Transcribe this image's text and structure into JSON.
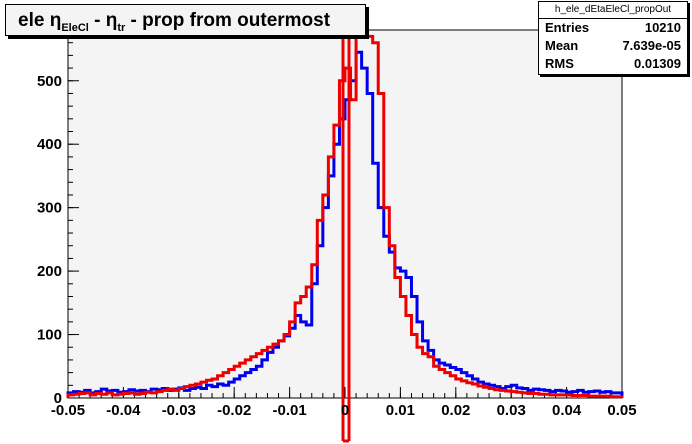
{
  "title": {
    "prefix": "ele η",
    "sub1": "EleCl",
    "middle": " - η",
    "sub2": "tr",
    "suffix": " - prop from outermost"
  },
  "stats": {
    "name": "h_ele_dEtaEleCl_propOut",
    "rows": [
      {
        "label": "Entries",
        "value": "10210"
      },
      {
        "label": "Mean",
        "value": "7.639e-05"
      },
      {
        "label": "RMS",
        "value": "0.01309"
      }
    ]
  },
  "colors": {
    "blue": "#0000ee",
    "red": "#ee0000",
    "plot_bg": "#f4f4f4"
  },
  "chart_data": {
    "type": "line",
    "style": "step-histogram",
    "xlim": [
      -0.05,
      0.05
    ],
    "ylim": [
      0,
      580
    ],
    "x_ticks": [
      -0.05,
      -0.04,
      -0.03,
      -0.02,
      -0.01,
      0,
      0.01,
      0.02,
      0.03,
      0.04,
      0.05
    ],
    "x_tick_labels": [
      "-0.05",
      "-0.04",
      "-0.03",
      "-0.02",
      "-0.01",
      "0",
      "0.01",
      "0.02",
      "0.03",
      "0.04",
      "0.05"
    ],
    "y_ticks": [
      0,
      100,
      200,
      300,
      400,
      500
    ],
    "y_tick_labels": [
      "0",
      "100",
      "200",
      "300",
      "400",
      "500"
    ],
    "bin_edges_start": -0.05,
    "bin_width": 0.001,
    "series": [
      {
        "color": "blue",
        "values": [
          8,
          10,
          9,
          12,
          8,
          10,
          14,
          11,
          12,
          9,
          10,
          13,
          11,
          12,
          10,
          14,
          13,
          15,
          12,
          14,
          16,
          12,
          15,
          17,
          15,
          20,
          18,
          22,
          20,
          25,
          30,
          35,
          40,
          45,
          50,
          60,
          72,
          80,
          90,
          98,
          110,
          130,
          120,
          115,
          180,
          240,
          300,
          350,
          400,
          440,
          470,
          500,
          545,
          520,
          480,
          370,
          300,
          255,
          230,
          205,
          200,
          190,
          160,
          120,
          90,
          75,
          60,
          55,
          52,
          48,
          45,
          40,
          35,
          30,
          25,
          22,
          20,
          18,
          15,
          18,
          20,
          16,
          15,
          12,
          14,
          13,
          12,
          10,
          12,
          11,
          9,
          10,
          12,
          9,
          10,
          11,
          9,
          10,
          8,
          8
        ]
      },
      {
        "color": "red",
        "values": [
          5,
          6,
          7,
          8,
          5,
          7,
          6,
          8,
          5,
          6,
          7,
          8,
          6,
          7,
          9,
          8,
          10,
          12,
          14,
          12,
          15,
          18,
          20,
          22,
          25,
          28,
          30,
          35,
          40,
          45,
          50,
          55,
          60,
          65,
          70,
          75,
          80,
          85,
          90,
          100,
          120,
          150,
          160,
          175,
          210,
          280,
          320,
          380,
          430,
          500,
          520,
          470,
          580,
          600,
          570,
          560,
          480,
          300,
          240,
          190,
          160,
          130,
          100,
          80,
          70,
          65,
          50,
          45,
          40,
          35,
          30,
          27,
          24,
          22,
          19,
          17,
          15,
          13,
          12,
          11,
          10,
          9,
          8,
          7,
          7,
          6,
          6,
          5,
          5,
          5,
          5,
          4,
          4,
          4,
          3,
          3,
          3,
          3,
          2,
          2
        ]
      }
    ]
  }
}
